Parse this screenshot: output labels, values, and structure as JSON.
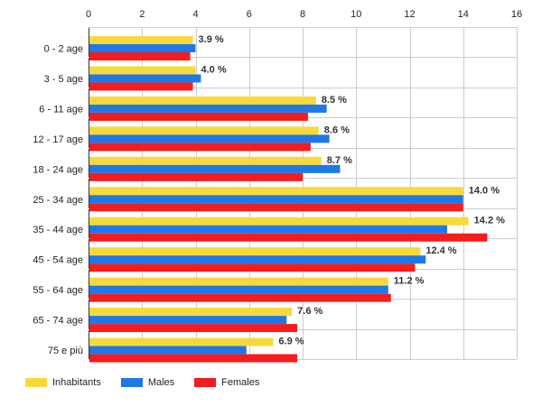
{
  "chart_data": {
    "type": "bar",
    "orientation": "horizontal",
    "categories": [
      "0 - 2 age",
      "3 - 5 age",
      "6 - 11 age",
      "12 - 17 age",
      "18 - 24 age",
      "25 - 34 age",
      "35 - 44 age",
      "45 - 54 age",
      "55 - 64 age",
      "65 - 74 age",
      "75 e più"
    ],
    "series": [
      {
        "name": "Inhabitants",
        "color": "#f7d93b",
        "values": [
          3.9,
          4.0,
          8.5,
          8.6,
          8.7,
          14.0,
          14.2,
          12.4,
          11.2,
          7.6,
          6.9
        ]
      },
      {
        "name": "Males",
        "color": "#1f78e8",
        "values": [
          4.0,
          4.2,
          8.9,
          9.0,
          9.4,
          14.0,
          13.4,
          12.6,
          11.2,
          7.4,
          5.9
        ]
      },
      {
        "name": "Females",
        "color": "#f41c1c",
        "values": [
          3.8,
          3.9,
          8.2,
          8.3,
          8.0,
          14.0,
          14.9,
          12.2,
          11.3,
          7.8,
          7.8
        ]
      }
    ],
    "data_labels": [
      "3.9 %",
      "4.0 %",
      "8.5 %",
      "8.6 %",
      "8.7 %",
      "14.0 %",
      "14.2 %",
      "12.4 %",
      "11.2 %",
      "7.6 %",
      "6.9 %"
    ],
    "xlim": [
      0,
      16
    ],
    "xticks": [
      0,
      2,
      4,
      6,
      8,
      10,
      12,
      14,
      16
    ],
    "grid": true,
    "legend_position": "bottom-left",
    "title": "",
    "xlabel": "",
    "ylabel": ""
  }
}
